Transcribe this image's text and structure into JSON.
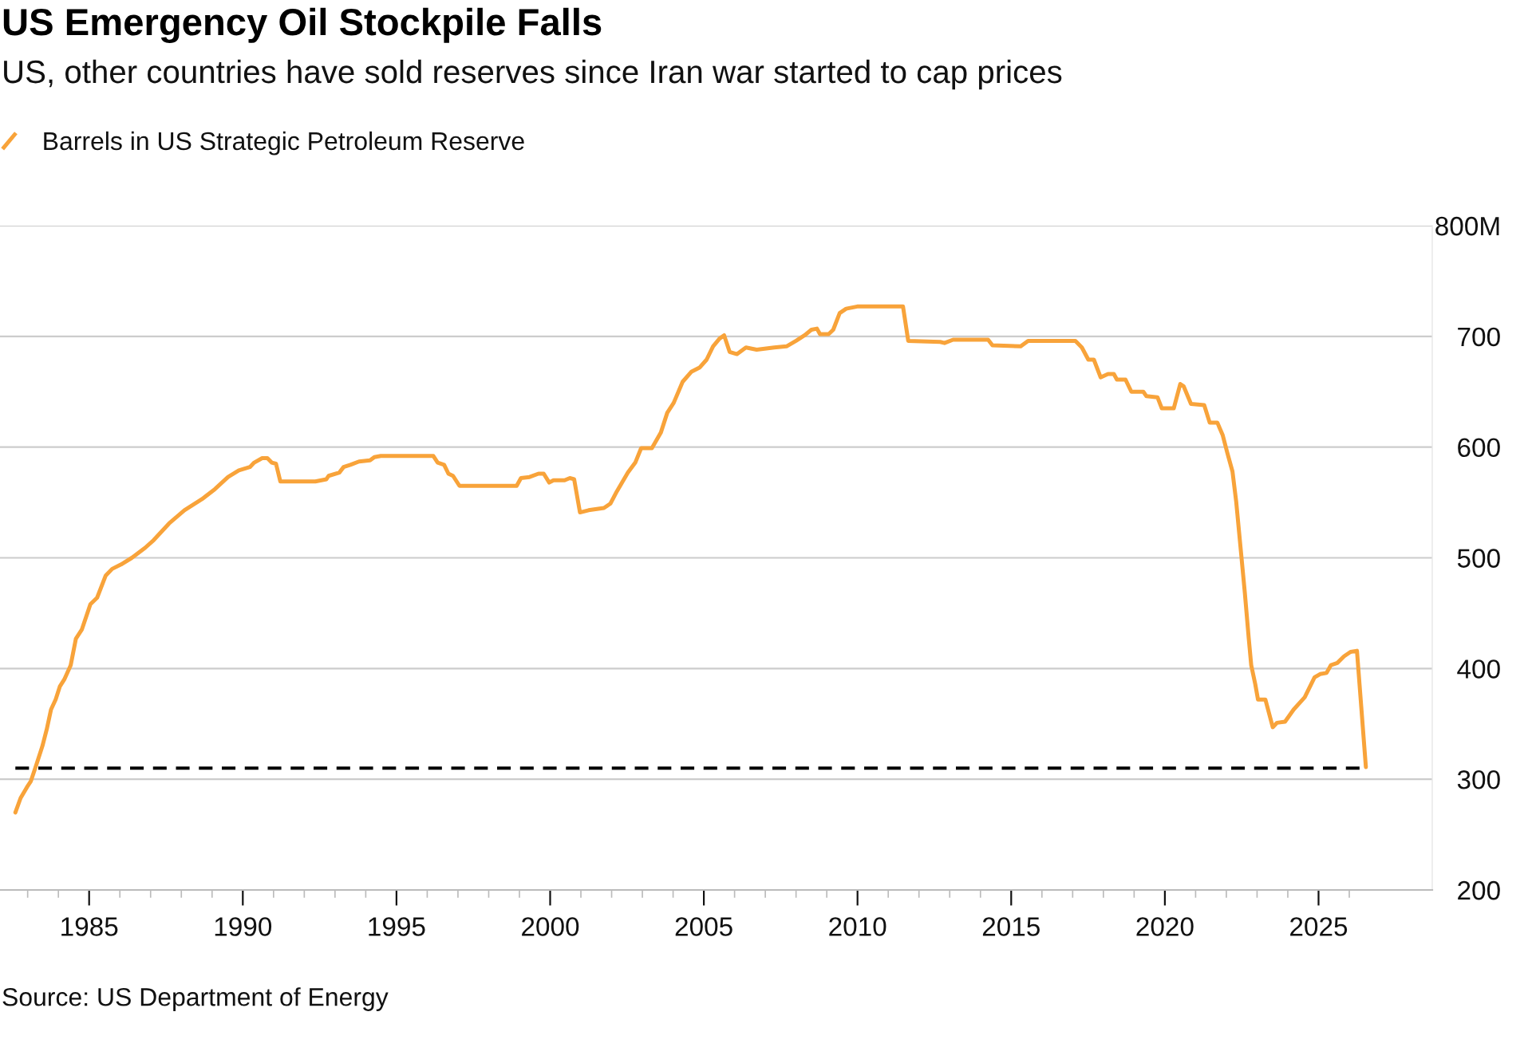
{
  "chart_data": {
    "type": "line",
    "title": "US Emergency Oil Stockpile Falls",
    "subtitle": "US, other countries have sold reserves since Iran war started to cap prices",
    "annotations": [
      "Source: US Department of Energy"
    ],
    "x": [
      1982.6,
      1982.77,
      1982.98,
      1983.1,
      1983.27,
      1983.48,
      1983.62,
      1983.76,
      1983.91,
      1984.05,
      1984.19,
      1984.4,
      1984.57,
      1984.76,
      1985.04,
      1985.26,
      1985.54,
      1985.75,
      1986.04,
      1986.39,
      1986.82,
      1987.1,
      1987.6,
      1988.1,
      1988.67,
      1989.09,
      1989.52,
      1989.87,
      1990.23,
      1990.37,
      1990.63,
      1990.8,
      1990.94,
      1991.08,
      1991.22,
      1992.36,
      1992.72,
      1992.79,
      1993.14,
      1993.28,
      1993.5,
      1993.78,
      1994.14,
      1994.28,
      1994.49,
      1996.2,
      1996.34,
      1996.55,
      1996.69,
      1996.84,
      1997.05,
      1998.91,
      1999.05,
      1999.33,
      1999.62,
      1999.79,
      1999.97,
      2000.11,
      2000.47,
      2000.64,
      2000.78,
      2000.97,
      2001.25,
      2001.75,
      2001.96,
      2002.17,
      2002.53,
      2002.77,
      2002.96,
      2003.31,
      2003.6,
      2003.81,
      2004.02,
      2004.31,
      2004.59,
      2004.87,
      2005.09,
      2005.3,
      2005.51,
      2005.66,
      2005.84,
      2006.08,
      2006.37,
      2006.72,
      2007.29,
      2007.69,
      2008.0,
      2008.28,
      2008.5,
      2008.68,
      2008.78,
      2009.06,
      2009.21,
      2009.42,
      2009.63,
      2009.99,
      2011.48,
      2011.65,
      2012.69,
      2012.83,
      2013.11,
      2014.25,
      2014.39,
      2015.31,
      2015.55,
      2017.09,
      2017.3,
      2017.51,
      2017.69,
      2017.91,
      2018.15,
      2018.34,
      2018.44,
      2018.72,
      2018.91,
      2019.3,
      2019.4,
      2019.76,
      2019.9,
      2020.29,
      2020.5,
      2020.61,
      2020.85,
      2021.28,
      2021.46,
      2021.71,
      2021.88,
      2022.03,
      2022.2,
      2022.32,
      2022.46,
      2022.6,
      2022.73,
      2022.81,
      2022.94,
      2023.03,
      2023.27,
      2023.51,
      2023.65,
      2023.91,
      2024.19,
      2024.55,
      2024.87,
      2025.05,
      2025.26,
      2025.4,
      2025.61,
      2025.83,
      2026.04,
      2026.25,
      2026.54
    ],
    "series": [
      {
        "name": "Barrels in US Strategic Petroleum Reserve",
        "color": "#f8a33a",
        "values": [
          270,
          283,
          293,
          298,
          312,
          330,
          345,
          363,
          372,
          384,
          390,
          403,
          427,
          435,
          458,
          464,
          484,
          490,
          494,
          500,
          509,
          516,
          531,
          543,
          553,
          562,
          573,
          579,
          582,
          586,
          590,
          590,
          586,
          585,
          569,
          569,
          571,
          574,
          577,
          582,
          584,
          587,
          588,
          591,
          592,
          592,
          586,
          584,
          576,
          574,
          565,
          565,
          572,
          573,
          576,
          576,
          568,
          570,
          570,
          572,
          571,
          541,
          543,
          545,
          549,
          560,
          577,
          586,
          599,
          599,
          613,
          631,
          640,
          659,
          668,
          672,
          679,
          691,
          698,
          701,
          686,
          684,
          690,
          688,
          690,
          691,
          696,
          701,
          706,
          707,
          702,
          702,
          706,
          721,
          725,
          727,
          727,
          696,
          695,
          694,
          697,
          697,
          692,
          691,
          696,
          696,
          690,
          679,
          679,
          663,
          666,
          666,
          661,
          661,
          650,
          650,
          646,
          645,
          635,
          635,
          657,
          655,
          639,
          638,
          622,
          622,
          611,
          595,
          578,
          551,
          510,
          469,
          427,
          403,
          386,
          372,
          372,
          347,
          351,
          352,
          363,
          374,
          392,
          395,
          396,
          403,
          405,
          411,
          415,
          416,
          311
        ]
      }
    ],
    "xlim": [
      1982.1,
      2028.7
    ],
    "xticks": [
      {
        "value": 1983,
        "label": null
      },
      {
        "value": 1984,
        "label": null
      },
      1985,
      {
        "value": 1986,
        "label": null
      },
      {
        "value": 1987,
        "label": null
      },
      {
        "value": 1988,
        "label": null
      },
      {
        "value": 1989,
        "label": null
      },
      1990,
      {
        "value": 1991,
        "label": null
      },
      {
        "value": 1992,
        "label": null
      },
      {
        "value": 1993,
        "label": null
      },
      {
        "value": 1994,
        "label": null
      },
      1995,
      {
        "value": 1996,
        "label": null
      },
      {
        "value": 1997,
        "label": null
      },
      {
        "value": 1998,
        "label": null
      },
      {
        "value": 1999,
        "label": null
      },
      2000,
      {
        "value": 2001,
        "label": null
      },
      {
        "value": 2002,
        "label": null
      },
      {
        "value": 2003,
        "label": null
      },
      {
        "value": 2004,
        "label": null
      },
      2005,
      {
        "value": 2006,
        "label": null
      },
      {
        "value": 2007,
        "label": null
      },
      {
        "value": 2008,
        "label": null
      },
      {
        "value": 2009,
        "label": null
      },
      2010,
      {
        "value": 2011,
        "label": null
      },
      {
        "value": 2012,
        "label": null
      },
      {
        "value": 2013,
        "label": null
      },
      {
        "value": 2014,
        "label": null
      },
      2015,
      {
        "value": 2016,
        "label": null
      },
      {
        "value": 2017,
        "label": null
      },
      {
        "value": 2018,
        "label": null
      },
      {
        "value": 2019,
        "label": null
      },
      2020,
      {
        "value": 2021,
        "label": null
      },
      {
        "value": 2022,
        "label": null
      },
      {
        "value": 2023,
        "label": null
      },
      {
        "value": 2024,
        "label": null
      },
      2025,
      {
        "value": 2026,
        "label": null
      }
    ],
    "ylim": [
      200,
      800
    ],
    "yticks": [
      200,
      300,
      400,
      500,
      600,
      700,
      {
        "value": 800,
        "label": "800M"
      }
    ],
    "ref_lines": [
      {
        "axis": "y",
        "value": 310,
        "color": "#000000",
        "line_style": "dashed"
      }
    ],
    "grid": "y",
    "legend": "top left"
  }
}
